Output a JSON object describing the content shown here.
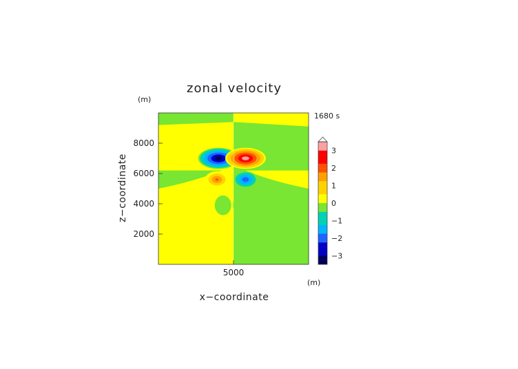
{
  "chart_data": {
    "type": "heatmap",
    "title": "zonal velocity",
    "xlabel": "x−coordinate",
    "ylabel": "z−coordinate",
    "x_unit": "(m)",
    "y_unit": "(m)",
    "time_label": "1680 s",
    "xlim": [
      0,
      10000
    ],
    "ylim": [
      0,
      10000
    ],
    "xticks": [
      5000
    ],
    "yticks": [
      2000,
      4000,
      6000,
      8000
    ],
    "grid": false,
    "legend": "right",
    "colorbar": {
      "range": [
        -3.5,
        3.5
      ],
      "step": 0.25,
      "tick_values": [
        3,
        2,
        1,
        0,
        -1,
        -2,
        -3
      ],
      "tick_labels": [
        "3",
        "2",
        "1",
        "0",
        "−1",
        "−2",
        "−3"
      ],
      "colors": [
        "#00005a",
        "#0000c8",
        "#1e64ff",
        "#00b4ff",
        "#00d2b4",
        "#78e632",
        "#ffff00",
        "#ffd200",
        "#ffa000",
        "#ff5000",
        "#ff0000",
        "#ffa0a0"
      ]
    },
    "field": {
      "background_left": 0.05,
      "background_right": -0.3,
      "dividing_line_x": 5000,
      "cells": [
        {
          "label": "negative core",
          "x": 4000,
          "z": 7000,
          "peak": -3.4
        },
        {
          "label": "positive core",
          "x": 5800,
          "z": 7000,
          "peak": 3.3
        },
        {
          "label": "positive core",
          "x": 3900,
          "z": 5600,
          "peak": 2.0
        },
        {
          "label": "negative core",
          "x": 5800,
          "z": 5600,
          "peak": -2.2
        },
        {
          "label": "weak negative",
          "x": 4300,
          "z": 3900,
          "peak": -0.5
        },
        {
          "label": "weak negative",
          "x": 5500,
          "z": 3900,
          "peak": -0.5
        }
      ]
    }
  }
}
